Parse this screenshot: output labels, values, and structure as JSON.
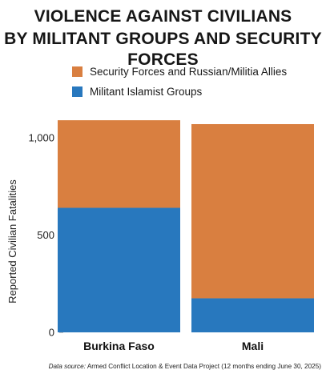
{
  "title_lines": [
    "VIOLENCE AGAINST CIVILIANS",
    "BY MILITANT GROUPS AND SECURITY FORCES"
  ],
  "legend": [
    {
      "label": "Security Forces and Russian/Militia Allies",
      "color": "#D97F40"
    },
    {
      "label": "Militant Islamist Groups",
      "color": "#2878BE"
    }
  ],
  "source": {
    "lead": "Data source:",
    "text": "Armed Conflict Location & Event Data Project (12 months ending June 30, 2025)"
  },
  "chart_data": {
    "type": "bar",
    "stacked": true,
    "categories": [
      "Burkina Faso",
      "Mali"
    ],
    "series": [
      {
        "name": "Militant Islamist Groups",
        "color": "#2878BE",
        "values": [
          640,
          175
        ]
      },
      {
        "name": "Security Forces and Russian/Militia Allies",
        "color": "#D97F40",
        "values": [
          450,
          895
        ]
      }
    ],
    "ylabel": "Reported Civilian Fatalities",
    "xlabel": "",
    "ylim": [
      0,
      1000
    ],
    "yticks": [
      0,
      500,
      1000
    ],
    "ytick_labels": [
      "0",
      "500",
      "1,000"
    ],
    "grid": false,
    "legend_position": "top"
  }
}
